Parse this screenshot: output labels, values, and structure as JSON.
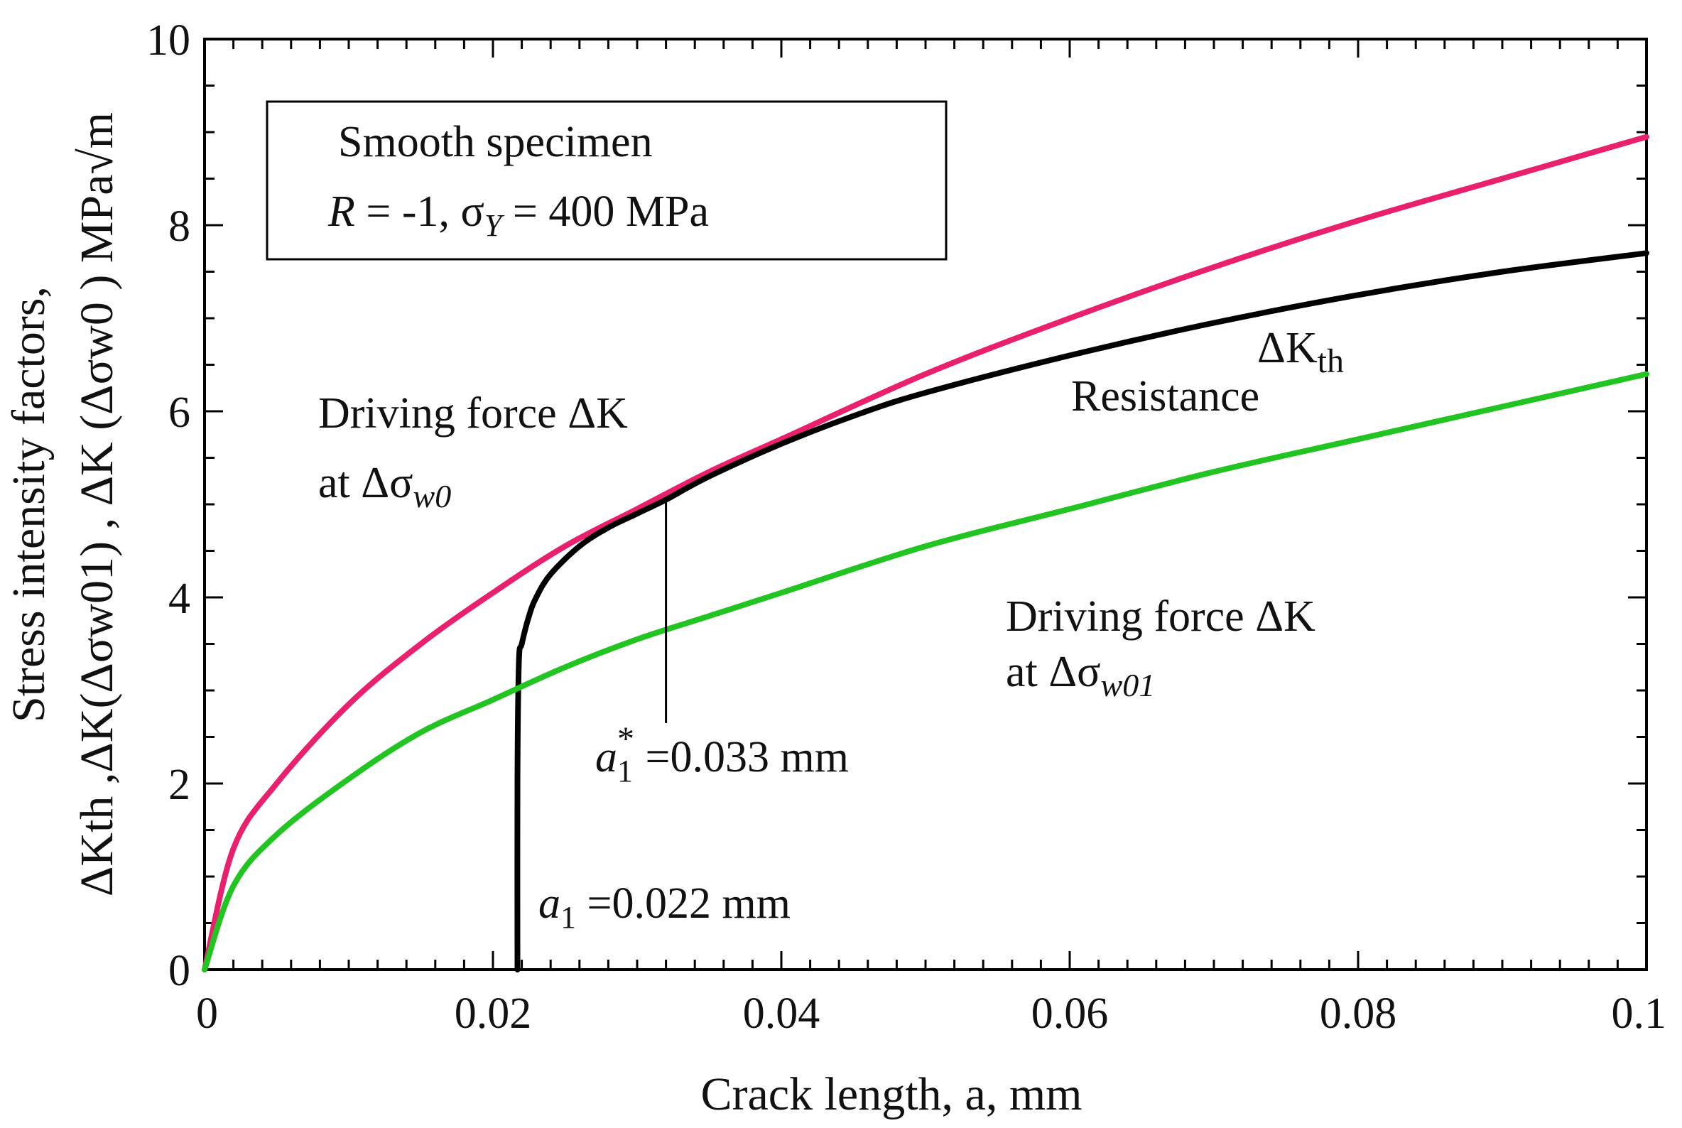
{
  "chart_data": {
    "type": "line",
    "xlabel": "Crack length, a, mm",
    "ylabel_line1": "Stress intensity factors,",
    "ylabel_line2": "ΔKth ,ΔK(Δσw01) , ΔK (Δσw0 ) MPa√m",
    "xlim": [
      0,
      0.1
    ],
    "ylim": [
      0,
      10
    ],
    "x_ticks": [
      0,
      0.02,
      0.04,
      0.06,
      0.08,
      0.1
    ],
    "x_tick_labels": [
      "0",
      "0.02",
      "0.04",
      "0.06",
      "0.08",
      "0.1"
    ],
    "y_ticks": [
      0,
      2,
      4,
      6,
      8,
      10
    ],
    "y_tick_labels": [
      "0",
      "2",
      "4",
      "6",
      "8",
      "10"
    ],
    "legend_box": {
      "line1": "Smooth specimen",
      "line2_R": "R",
      "line2_mid": " = -1, σ",
      "line2_Y": "Y",
      "line2_end": " = 400 MPa"
    },
    "series": [
      {
        "name": "Driving force ΔK at Δσw0",
        "color": "#e8206e",
        "x": [
          0,
          0.002,
          0.005,
          0.01,
          0.015,
          0.02,
          0.025,
          0.03,
          0.035,
          0.04,
          0.05,
          0.06,
          0.07,
          0.08,
          0.09,
          0.1
        ],
        "y": [
          0,
          1.3,
          2.0,
          2.85,
          3.5,
          4.05,
          4.55,
          4.95,
          5.35,
          5.7,
          6.4,
          7.0,
          7.55,
          8.05,
          8.5,
          8.95
        ]
      },
      {
        "name": "Resistance ΔKth",
        "color": "#000000",
        "x": [
          0.0217,
          0.0217,
          0.0218,
          0.022,
          0.0225,
          0.023,
          0.024,
          0.026,
          0.028,
          0.03,
          0.032,
          0.035,
          0.04,
          0.045,
          0.05,
          0.06,
          0.07,
          0.08,
          0.09,
          0.1
        ],
        "y": [
          0,
          2.0,
          3.3,
          3.5,
          3.8,
          4.0,
          4.25,
          4.55,
          4.75,
          4.9,
          5.05,
          5.3,
          5.65,
          5.95,
          6.2,
          6.6,
          6.95,
          7.25,
          7.5,
          7.7
        ]
      },
      {
        "name": "Driving force ΔK at Δσw01",
        "color": "#22c422",
        "x": [
          0,
          0.002,
          0.005,
          0.01,
          0.015,
          0.02,
          0.025,
          0.03,
          0.035,
          0.04,
          0.05,
          0.06,
          0.07,
          0.08,
          0.09,
          0.1
        ],
        "y": [
          0,
          0.9,
          1.45,
          2.05,
          2.55,
          2.9,
          3.25,
          3.55,
          3.8,
          4.05,
          4.55,
          4.95,
          5.35,
          5.7,
          6.05,
          6.4
        ]
      }
    ],
    "annotations": {
      "drive_w0_line1": "Driving force ΔK",
      "drive_w0_line2_pre": "at Δσ",
      "drive_w0_line2_sub": "w0",
      "resistance": "Resistance",
      "kth_delta": "ΔK",
      "kth_sub": "th",
      "drive_w01_line1": "Driving force ΔK",
      "drive_w01_line2_pre": "at  Δσ",
      "drive_w01_line2_sub": "w01",
      "a1star_a": "a",
      "a1star_sub": "1",
      "a1star_sup": "*",
      "a1star_val": " =0.033 mm",
      "a1_a": "a",
      "a1_sub": "1",
      "a1_val": " =0.022 mm",
      "a1star_x": 0.032
    }
  }
}
